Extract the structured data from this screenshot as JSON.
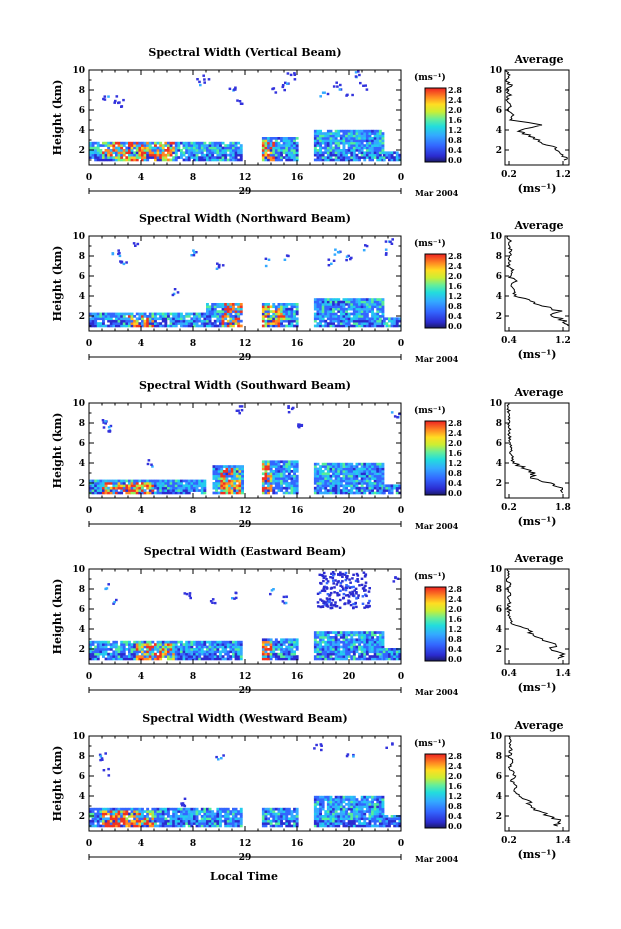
{
  "figure": {
    "date_label": "Mar 2004",
    "xlabel_bottom": "Local Time",
    "day_label": "29"
  },
  "chart_data": [
    {
      "type": "heatmap",
      "title": "Spectral Width (Vertical Beam)",
      "ylabel": "Height (km)",
      "x_ticks": [
        "0",
        "4",
        "8",
        "12",
        "16",
        "20",
        "0"
      ],
      "y_ticks": [
        "2",
        "4",
        "6",
        "8",
        "10"
      ],
      "xlim": [
        0,
        24
      ],
      "ylim": [
        0.5,
        10
      ],
      "colorbar": {
        "unit_label": "(ms⁻¹)",
        "ticks": [
          "0.0",
          "0.4",
          "0.8",
          "1.2",
          "1.6",
          "2.0",
          "2.4",
          "2.8"
        ],
        "range": [
          0,
          2.8
        ]
      },
      "low_layer": [
        {
          "t0": 0,
          "t1": 11.7,
          "top": 2.8,
          "hot": [
            [
              1,
              4
            ],
            [
              3.5,
              6.5
            ]
          ]
        },
        {
          "t0": 13.3,
          "t1": 16,
          "top": 3.2,
          "hot": [
            [
              13.3,
              14.2
            ]
          ]
        },
        {
          "t0": 17.3,
          "t1": 22.5,
          "top": 3.8,
          "hot": []
        },
        {
          "t0": 22.6,
          "t1": 23.8,
          "top": 1.8,
          "hot": []
        }
      ],
      "scatter": [
        [
          1.2,
          7.5
        ],
        [
          2,
          7.2
        ],
        [
          2.5,
          6.8
        ],
        [
          8.5,
          9
        ],
        [
          9,
          9.5
        ],
        [
          11,
          8
        ],
        [
          11.5,
          7
        ],
        [
          14,
          8
        ],
        [
          15,
          8.5
        ],
        [
          15.5,
          9.5
        ],
        [
          18,
          7.5
        ],
        [
          19,
          8.5
        ],
        [
          20,
          7.5
        ],
        [
          21,
          8.5
        ],
        [
          20.5,
          9.8
        ]
      ],
      "average_panel": {
        "title": "Average",
        "xlabel": "(ms⁻¹)",
        "x_ticks": [
          "0.2",
          "1.2"
        ],
        "xlim": [
          0.2,
          1.4
        ],
        "y_ticks": [
          "2",
          "4",
          "6",
          "8",
          "10"
        ],
        "profile": [
          [
            1.3,
            1
          ],
          [
            1.35,
            1.5
          ],
          [
            1.2,
            2
          ],
          [
            1.0,
            2.5
          ],
          [
            0.8,
            3
          ],
          [
            0.6,
            3.5
          ],
          [
            0.5,
            4
          ],
          [
            0.9,
            4.5
          ],
          [
            0.3,
            5
          ],
          [
            0.35,
            5.5
          ],
          [
            0.25,
            6
          ],
          [
            0.3,
            6.5
          ],
          [
            0.22,
            7
          ],
          [
            0.28,
            7.5
          ],
          [
            0.25,
            8
          ],
          [
            0.3,
            8.5
          ],
          [
            0.23,
            9
          ],
          [
            0.28,
            9.5
          ],
          [
            0.22,
            10
          ]
        ]
      }
    },
    {
      "type": "heatmap",
      "title": "Spectral Width (Northward Beam)",
      "ylabel": "Height (km)",
      "x_ticks": [
        "0",
        "4",
        "8",
        "12",
        "16",
        "20",
        "0"
      ],
      "y_ticks": [
        "2",
        "4",
        "6",
        "8",
        "10"
      ],
      "xlim": [
        0,
        24
      ],
      "ylim": [
        0.5,
        10
      ],
      "colorbar": {
        "unit_label": "(ms⁻¹)",
        "ticks": [
          "0.0",
          "0.4",
          "0.8",
          "1.2",
          "1.6",
          "2.0",
          "2.4",
          "2.8"
        ],
        "range": [
          0,
          2.8
        ]
      },
      "low_layer": [
        {
          "t0": 0,
          "t1": 9,
          "top": 2.2,
          "hot": [
            [
              3,
              5
            ]
          ]
        },
        {
          "t0": 9,
          "t1": 11.7,
          "top": 3.3,
          "hot": [
            [
              10,
              11.7
            ]
          ]
        },
        {
          "t0": 13.3,
          "t1": 16,
          "top": 3.2,
          "hot": [
            [
              13.3,
              15
            ]
          ]
        },
        {
          "t0": 17.3,
          "t1": 22.5,
          "top": 3.7,
          "hot": []
        },
        {
          "t0": 22.6,
          "t1": 23.8,
          "top": 1.8,
          "hot": []
        }
      ],
      "scatter": [
        [
          2,
          8.5
        ],
        [
          2.5,
          7.5
        ],
        [
          3.5,
          9.5
        ],
        [
          6.5,
          4.5
        ],
        [
          8,
          8.5
        ],
        [
          10,
          7
        ],
        [
          13.5,
          7.5
        ],
        [
          15,
          8
        ],
        [
          18.5,
          7.5
        ],
        [
          19,
          8.5
        ],
        [
          20,
          8
        ],
        [
          21,
          9
        ],
        [
          22.5,
          8.5
        ],
        [
          23,
          9.5
        ]
      ],
      "average_panel": {
        "title": "Average",
        "xlabel": "(ms⁻¹)",
        "x_ticks": [
          "0.4",
          "1.2"
        ],
        "xlim": [
          0.2,
          1.4
        ],
        "y_ticks": [
          "2",
          "4",
          "6",
          "8",
          "10"
        ],
        "profile": [
          [
            1.35,
            1
          ],
          [
            1.3,
            1.5
          ],
          [
            1.1,
            2
          ],
          [
            1.2,
            2.5
          ],
          [
            0.9,
            3
          ],
          [
            0.7,
            3.5
          ],
          [
            0.4,
            4
          ],
          [
            0.35,
            4.5
          ],
          [
            0.3,
            5
          ],
          [
            0.4,
            5.5
          ],
          [
            0.28,
            6
          ],
          [
            0.35,
            6.5
          ],
          [
            0.25,
            7
          ],
          [
            0.3,
            7.5
          ],
          [
            0.28,
            8
          ],
          [
            0.32,
            8.5
          ],
          [
            0.25,
            9
          ],
          [
            0.3,
            9.5
          ],
          [
            0.25,
            10
          ]
        ]
      }
    },
    {
      "type": "heatmap",
      "title": "Spectral Width (Southward Beam)",
      "ylabel": "Height (km)",
      "x_ticks": [
        "0",
        "4",
        "8",
        "12",
        "16",
        "20",
        "0"
      ],
      "y_ticks": [
        "2",
        "4",
        "6",
        "8",
        "10"
      ],
      "xlim": [
        0,
        24
      ],
      "ylim": [
        0.5,
        10
      ],
      "colorbar": {
        "unit_label": "(ms⁻¹)",
        "ticks": [
          "0.0",
          "0.4",
          "0.8",
          "1.2",
          "1.6",
          "2.0",
          "2.4",
          "2.8"
        ],
        "range": [
          0,
          2.8
        ]
      },
      "low_layer": [
        {
          "t0": 0,
          "t1": 9,
          "top": 2.3,
          "hot": [
            [
              1,
              5
            ]
          ]
        },
        {
          "t0": 9.5,
          "t1": 11.7,
          "top": 3.6,
          "hot": [
            [
              10,
              11.5
            ]
          ]
        },
        {
          "t0": 13.3,
          "t1": 16,
          "top": 4.2,
          "hot": [
            [
              13.3,
              14
            ]
          ]
        },
        {
          "t0": 17.3,
          "t1": 22.5,
          "top": 4.0,
          "hot": []
        },
        {
          "t0": 22.6,
          "t1": 23.8,
          "top": 1.8,
          "hot": []
        }
      ],
      "scatter": [
        [
          1,
          8
        ],
        [
          1.5,
          7.5
        ],
        [
          11.5,
          9.5
        ],
        [
          15.5,
          9.5
        ],
        [
          16,
          8
        ],
        [
          4.5,
          4
        ],
        [
          23.5,
          9
        ]
      ],
      "average_panel": {
        "title": "Average",
        "xlabel": "(ms⁻¹)",
        "x_ticks": [
          "0.2",
          "1.8"
        ],
        "xlim": [
          0.2,
          1.8
        ],
        "y_ticks": [
          "2",
          "4",
          "6",
          "8",
          "10"
        ],
        "profile": [
          [
            1.7,
            1
          ],
          [
            1.6,
            1.5
          ],
          [
            1.3,
            2
          ],
          [
            0.9,
            2.5
          ],
          [
            0.9,
            3
          ],
          [
            0.7,
            3.5
          ],
          [
            0.4,
            4
          ],
          [
            0.38,
            4.5
          ],
          [
            0.35,
            5
          ],
          [
            0.35,
            5.5
          ],
          [
            0.32,
            6
          ],
          [
            0.33,
            6.5
          ],
          [
            0.3,
            7
          ],
          [
            0.32,
            7.5
          ],
          [
            0.3,
            8
          ],
          [
            0.32,
            8.5
          ],
          [
            0.3,
            9
          ],
          [
            0.28,
            9.5
          ],
          [
            0.3,
            10
          ]
        ]
      }
    },
    {
      "type": "heatmap",
      "title": "Spectral Width (Eastward Beam)",
      "ylabel": "Height (km)",
      "x_ticks": [
        "0",
        "4",
        "8",
        "12",
        "16",
        "20",
        "0"
      ],
      "y_ticks": [
        "2",
        "4",
        "6",
        "8",
        "10"
      ],
      "xlim": [
        0,
        24
      ],
      "ylim": [
        0.5,
        10
      ],
      "colorbar": {
        "unit_label": "(ms⁻¹)",
        "ticks": [
          "0.0",
          "0.4",
          "0.8",
          "1.2",
          "1.6",
          "2.0",
          "2.4",
          "2.8"
        ],
        "range": [
          0,
          2.8
        ]
      },
      "low_layer": [
        {
          "t0": 0,
          "t1": 11.7,
          "top": 2.6,
          "hot": [
            [
              3.5,
              6.5
            ]
          ]
        },
        {
          "t0": 13.3,
          "t1": 16,
          "top": 3.0,
          "hot": [
            [
              13.3,
              14
            ]
          ]
        },
        {
          "t0": 17.3,
          "t1": 22.5,
          "top": 3.6,
          "hot": []
        },
        {
          "t0": 22.6,
          "t1": 23.8,
          "top": 2.0,
          "hot": []
        }
      ],
      "scatter": [
        [
          1.2,
          8.5
        ],
        [
          2,
          7
        ],
        [
          7.5,
          7.5
        ],
        [
          9.5,
          7
        ],
        [
          11,
          7.5
        ],
        [
          14,
          8
        ],
        [
          15,
          7
        ],
        [
          23.5,
          9
        ]
      ],
      "dense_cluster": {
        "t0": 17.5,
        "t1": 21.5,
        "h0": 6.2,
        "h1": 9.8
      },
      "average_panel": {
        "title": "Average",
        "xlabel": "(ms⁻¹)",
        "x_ticks": [
          "0.4",
          "1.4"
        ],
        "xlim": [
          0.2,
          1.6
        ],
        "y_ticks": [
          "2",
          "4",
          "6",
          "8",
          "10"
        ],
        "profile": [
          [
            1.4,
            1
          ],
          [
            1.5,
            1.5
          ],
          [
            1.2,
            2
          ],
          [
            1.3,
            2.5
          ],
          [
            1.0,
            3
          ],
          [
            0.8,
            3.5
          ],
          [
            0.7,
            4
          ],
          [
            0.35,
            4.5
          ],
          [
            0.32,
            5
          ],
          [
            0.3,
            5.5
          ],
          [
            0.28,
            6
          ],
          [
            0.3,
            6.5
          ],
          [
            0.27,
            7
          ],
          [
            0.3,
            7.5
          ],
          [
            0.28,
            8
          ],
          [
            0.3,
            8.5
          ],
          [
            0.25,
            9
          ],
          [
            0.28,
            9.5
          ],
          [
            0.25,
            10
          ]
        ]
      }
    },
    {
      "type": "heatmap",
      "title": "Spectral Width (Westward Beam)",
      "ylabel": "Height (km)",
      "x_ticks": [
        "0",
        "4",
        "8",
        "12",
        "16",
        "20",
        "0"
      ],
      "y_ticks": [
        "2",
        "4",
        "6",
        "8",
        "10"
      ],
      "xlim": [
        0,
        24
      ],
      "ylim": [
        0.5,
        10
      ],
      "colorbar": {
        "unit_label": "(ms⁻¹)",
        "ticks": [
          "0.0",
          "0.4",
          "0.8",
          "1.2",
          "1.6",
          "2.0",
          "2.4",
          "2.8"
        ],
        "range": [
          0,
          2.8
        ]
      },
      "low_layer": [
        {
          "t0": 0,
          "t1": 11.7,
          "top": 2.6,
          "hot": [
            [
              1,
              5
            ]
          ]
        },
        {
          "t0": 13.3,
          "t1": 16,
          "top": 2.8,
          "hot": []
        },
        {
          "t0": 17.3,
          "t1": 22.5,
          "top": 3.8,
          "hot": []
        },
        {
          "t0": 22.6,
          "t1": 23.8,
          "top": 2.0,
          "hot": []
        }
      ],
      "scatter": [
        [
          1,
          8
        ],
        [
          1.2,
          6.5
        ],
        [
          7,
          3.5
        ],
        [
          10,
          8
        ],
        [
          17.5,
          9
        ],
        [
          20,
          8
        ],
        [
          23,
          9
        ]
      ],
      "average_panel": {
        "title": "Average",
        "xlabel": "(ms⁻¹)",
        "x_ticks": [
          "0.2",
          "1.4"
        ],
        "xlim": [
          0.2,
          1.6
        ],
        "y_ticks": [
          "2",
          "4",
          "6",
          "8",
          "10"
        ],
        "profile": [
          [
            1.3,
            1
          ],
          [
            1.4,
            1.5
          ],
          [
            1.2,
            2
          ],
          [
            0.9,
            2.5
          ],
          [
            0.8,
            3
          ],
          [
            0.7,
            3.5
          ],
          [
            0.5,
            4
          ],
          [
            0.4,
            4.5
          ],
          [
            0.45,
            5
          ],
          [
            0.35,
            5.5
          ],
          [
            0.4,
            6
          ],
          [
            0.35,
            6.5
          ],
          [
            0.3,
            7
          ],
          [
            0.35,
            7.5
          ],
          [
            0.3,
            8
          ],
          [
            0.33,
            8.5
          ],
          [
            0.3,
            9
          ],
          [
            0.32,
            9.5
          ],
          [
            0.28,
            10
          ]
        ]
      }
    }
  ]
}
